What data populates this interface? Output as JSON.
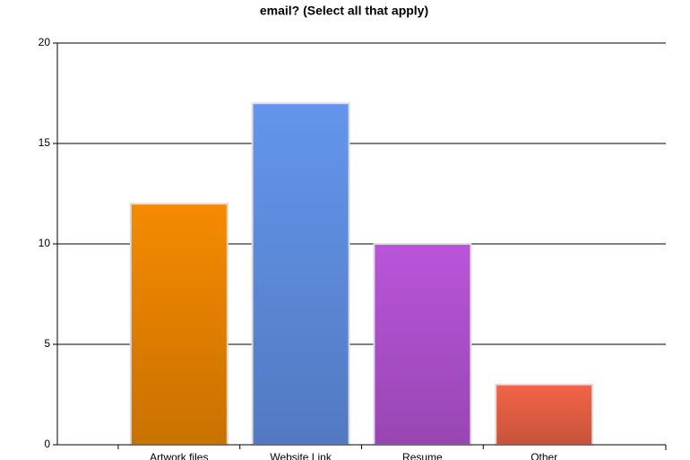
{
  "chart_data": {
    "type": "bar",
    "title": "email? (Select all that apply)",
    "categories": [
      "Artwork files",
      "Website Link",
      "Resume",
      "Other"
    ],
    "values": [
      12,
      17,
      10,
      3
    ],
    "colors": [
      "#f58a00",
      "#6495ec",
      "#b955da",
      "#f46448"
    ],
    "ylim": [
      0,
      20
    ],
    "yticks": [
      0,
      5,
      10,
      15,
      20
    ],
    "grid": true
  }
}
